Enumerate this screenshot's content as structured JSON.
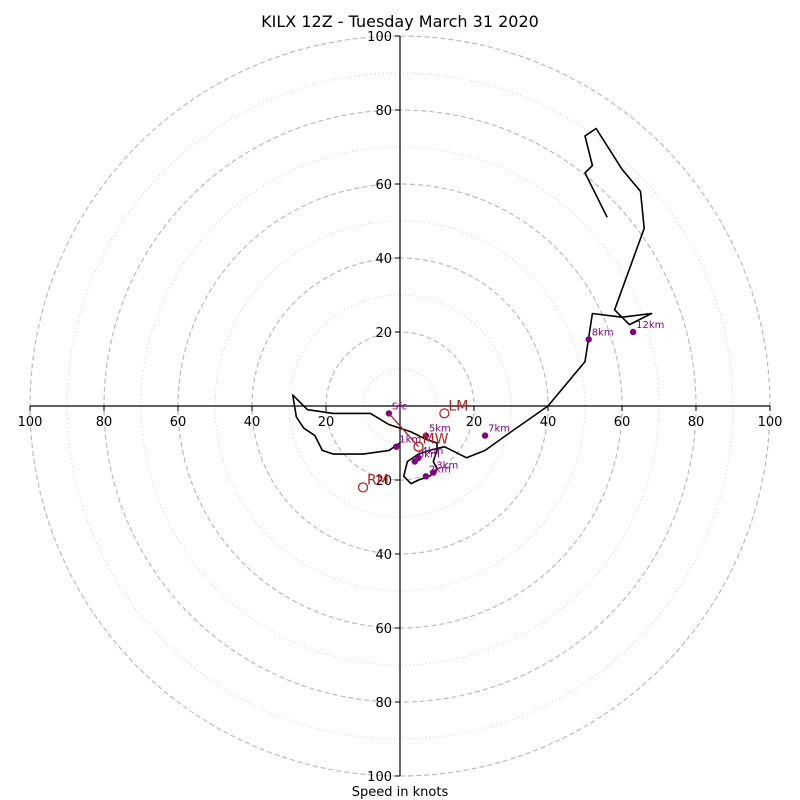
{
  "chart_data": {
    "type": "hodograph",
    "title": "KILX 12Z - Tuesday March 31 2020",
    "xlabel": "Speed in knots",
    "range": 100,
    "ring_step": 20,
    "tick_values": [
      20,
      40,
      60,
      80,
      100
    ],
    "colors": {
      "trace": "#000000",
      "points": "#800080",
      "motion": "#b22222",
      "rings": "#bbbbbb"
    },
    "hodograph_trace": [
      [
        0,
        -10
      ],
      [
        -3,
        -12
      ],
      [
        -10,
        -13
      ],
      [
        -18,
        -13
      ],
      [
        -21,
        -12
      ],
      [
        -23,
        -8
      ],
      [
        -26,
        -6
      ],
      [
        -28,
        -3
      ],
      [
        -29,
        3
      ],
      [
        -25,
        -1
      ],
      [
        -18,
        -2
      ],
      [
        -8,
        -2
      ],
      [
        -3,
        -5
      ],
      [
        3,
        -7
      ],
      [
        7,
        -9
      ],
      [
        10,
        -10
      ],
      [
        10,
        -12
      ],
      [
        9,
        -15
      ],
      [
        10,
        -17
      ],
      [
        8,
        -19
      ],
      [
        5,
        -20
      ],
      [
        3,
        -21
      ],
      [
        1,
        -19
      ],
      [
        2,
        -15
      ],
      [
        5,
        -13
      ],
      [
        8,
        -12
      ],
      [
        12,
        -11
      ],
      [
        18,
        -14
      ],
      [
        23,
        -12
      ],
      [
        30,
        -7
      ],
      [
        40,
        0
      ],
      [
        50,
        12
      ],
      [
        52,
        25
      ],
      [
        60,
        24
      ],
      [
        68,
        25
      ],
      [
        62,
        22
      ],
      [
        58,
        26
      ],
      [
        66,
        48
      ],
      [
        65,
        58
      ],
      [
        60,
        64
      ],
      [
        53,
        75
      ],
      [
        50,
        73
      ],
      [
        52,
        65
      ],
      [
        50,
        63
      ],
      [
        56,
        51
      ]
    ],
    "points": [
      {
        "label": "Sfc",
        "u": -3,
        "v": -2
      },
      {
        "label": "1km",
        "u": -1,
        "v": -11
      },
      {
        "label": "2km",
        "u": 7,
        "v": -19
      },
      {
        "label": "3km",
        "u": 9,
        "v": -18
      },
      {
        "label": "4km",
        "u": 5,
        "v": -14
      },
      {
        "label": "5km",
        "u": 7,
        "v": -8
      },
      {
        "label": "6km",
        "u": 4,
        "v": -15
      },
      {
        "label": "7km",
        "u": 23,
        "v": -8
      },
      {
        "label": "8km",
        "u": 51,
        "v": 18
      },
      {
        "label": "12km",
        "u": 63,
        "v": 20
      }
    ],
    "storm_motions": [
      {
        "label": "LM",
        "u": 12,
        "v": -2
      },
      {
        "label": "RM",
        "u": -10,
        "v": -22
      },
      {
        "label": "MW",
        "u": 5,
        "v": -11
      }
    ]
  }
}
